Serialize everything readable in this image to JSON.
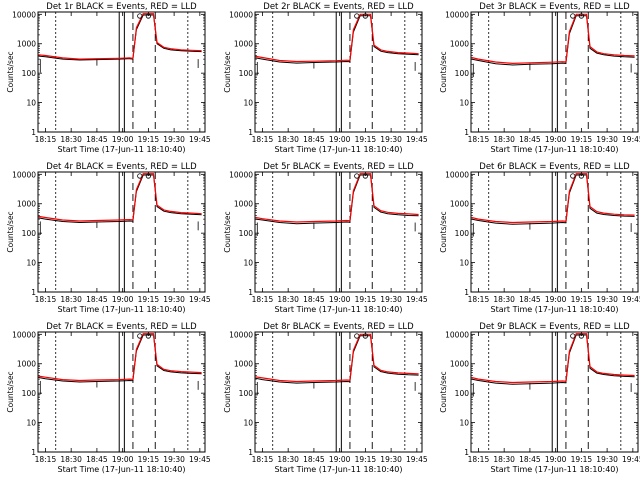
{
  "panel_layout": "3x3 grid",
  "colors": {
    "events": "#000000",
    "lld": "#ff0000",
    "background": "#ffffff"
  },
  "common": {
    "ylabel": "Counts/sec",
    "xlabel": "Start Time (17-Jun-11 18:10:40)",
    "xticks": [
      "18:15",
      "18:30",
      "18:45",
      "19:00",
      "19:15",
      "19:30",
      "19:45"
    ],
    "yticks": [
      "1",
      "10",
      "100",
      "1000",
      "10000"
    ]
  },
  "chart_data": [
    {
      "type": "line",
      "title": "Det 1r  BLACK = Events, RED = LLD",
      "xlabel": "Start Time (17-Jun-11 18:10:40)",
      "ylabel": "Counts/sec",
      "yscale": "log",
      "ylim": [
        1,
        12000
      ],
      "xlim": [
        "18:10:40",
        "19:48:00"
      ],
      "series": [
        {
          "name": "Events",
          "color": "#000000",
          "x": [
            "18:11",
            "18:15",
            "18:25",
            "18:35",
            "18:45",
            "18:58",
            "19:04",
            "19:06",
            "19:08",
            "19:12",
            "19:18",
            "19:20",
            "19:24",
            "19:28",
            "19:34",
            "19:40",
            "19:46"
          ],
          "y": [
            380,
            360,
            300,
            280,
            290,
            300,
            310,
            300,
            3000,
            9500,
            9500,
            1000,
            700,
            620,
            580,
            560,
            540
          ]
        },
        {
          "name": "LLD",
          "color": "#ff0000",
          "x": [
            "18:11",
            "18:15",
            "18:25",
            "18:35",
            "18:45",
            "18:58",
            "19:04",
            "19:06",
            "19:08",
            "19:12",
            "19:18",
            "19:20",
            "19:24",
            "19:28",
            "19:34",
            "19:40",
            "19:46"
          ],
          "y": [
            420,
            400,
            330,
            300,
            310,
            320,
            330,
            320,
            3500,
            10500,
            10500,
            1100,
            760,
            680,
            620,
            600,
            580
          ]
        }
      ]
    },
    {
      "type": "line",
      "title": "Det 2r  BLACK = Events, RED = LLD",
      "xlabel": "Start Time (17-Jun-11 18:10:40)",
      "ylabel": "Counts/sec",
      "yscale": "log",
      "ylim": [
        1,
        12000
      ],
      "xlim": [
        "18:10:40",
        "19:48:00"
      ],
      "series": [
        {
          "name": "Events",
          "color": "#000000",
          "x": [
            "18:11",
            "18:15",
            "18:25",
            "18:35",
            "18:45",
            "18:58",
            "19:04",
            "19:06",
            "19:08",
            "19:12",
            "19:18",
            "19:20",
            "19:24",
            "19:28",
            "19:34",
            "19:40",
            "19:46"
          ],
          "y": [
            330,
            300,
            240,
            220,
            230,
            240,
            250,
            245,
            2500,
            9000,
            9000,
            800,
            560,
            500,
            460,
            440,
            420
          ]
        },
        {
          "name": "LLD",
          "color": "#ff0000",
          "x": [
            "18:11",
            "18:15",
            "18:25",
            "18:35",
            "18:45",
            "18:58",
            "19:04",
            "19:06",
            "19:08",
            "19:12",
            "19:18",
            "19:20",
            "19:24",
            "19:28",
            "19:34",
            "19:40",
            "19:46"
          ],
          "y": [
            370,
            340,
            270,
            250,
            255,
            265,
            275,
            270,
            3000,
            10000,
            10000,
            900,
            620,
            550,
            500,
            480,
            460
          ]
        }
      ]
    },
    {
      "type": "line",
      "title": "Det 3r  BLACK = Events, RED = LLD",
      "xlabel": "Start Time (17-Jun-11 18:10:40)",
      "ylabel": "Counts/sec",
      "yscale": "log",
      "ylim": [
        1,
        12000
      ],
      "xlim": [
        "18:10:40",
        "19:48:00"
      ],
      "series": [
        {
          "name": "Events",
          "color": "#000000",
          "x": [
            "18:11",
            "18:15",
            "18:25",
            "18:35",
            "18:45",
            "18:58",
            "19:04",
            "19:06",
            "19:08",
            "19:12",
            "19:18",
            "19:20",
            "19:24",
            "19:28",
            "19:34",
            "19:40",
            "19:46"
          ],
          "y": [
            300,
            270,
            210,
            190,
            200,
            210,
            220,
            215,
            2200,
            9000,
            9000,
            700,
            480,
            420,
            380,
            360,
            350
          ]
        },
        {
          "name": "LLD",
          "color": "#ff0000",
          "x": [
            "18:11",
            "18:15",
            "18:25",
            "18:35",
            "18:45",
            "18:58",
            "19:04",
            "19:06",
            "19:08",
            "19:12",
            "19:18",
            "19:20",
            "19:24",
            "19:28",
            "19:34",
            "19:40",
            "19:46"
          ],
          "y": [
            340,
            300,
            240,
            215,
            225,
            235,
            245,
            240,
            2600,
            10000,
            10000,
            800,
            530,
            460,
            420,
            400,
            385
          ]
        }
      ]
    },
    {
      "type": "line",
      "title": "Det 4r  BLACK = Events, RED = LLD",
      "xlabel": "Start Time (17-Jun-11 18:10:40)",
      "ylabel": "Counts/sec",
      "yscale": "log",
      "ylim": [
        1,
        12000
      ],
      "xlim": [
        "18:10:40",
        "19:48:00"
      ],
      "series": [
        {
          "name": "Events",
          "color": "#000000",
          "x": [
            "18:11",
            "18:15",
            "18:25",
            "18:35",
            "18:45",
            "18:58",
            "19:04",
            "19:06",
            "19:08",
            "19:12",
            "19:18",
            "19:20",
            "19:24",
            "19:28",
            "19:34",
            "19:40",
            "19:46"
          ],
          "y": [
            330,
            300,
            250,
            230,
            240,
            250,
            260,
            255,
            2600,
            9500,
            9500,
            800,
            560,
            500,
            460,
            440,
            420
          ]
        },
        {
          "name": "LLD",
          "color": "#ff0000",
          "x": [
            "18:11",
            "18:15",
            "18:25",
            "18:35",
            "18:45",
            "18:58",
            "19:04",
            "19:06",
            "19:08",
            "19:12",
            "19:18",
            "19:20",
            "19:24",
            "19:28",
            "19:34",
            "19:40",
            "19:46"
          ],
          "y": [
            370,
            340,
            280,
            260,
            270,
            280,
            290,
            285,
            3000,
            10500,
            10500,
            900,
            620,
            550,
            500,
            480,
            460
          ]
        }
      ]
    },
    {
      "type": "line",
      "title": "Det 5r  BLACK = Events, RED = LLD",
      "xlabel": "Start Time (17-Jun-11 18:10:40)",
      "ylabel": "Counts/sec",
      "yscale": "log",
      "ylim": [
        1,
        12000
      ],
      "xlim": [
        "18:10:40",
        "19:48:00"
      ],
      "series": [
        {
          "name": "Events",
          "color": "#000000",
          "x": [
            "18:11",
            "18:15",
            "18:25",
            "18:35",
            "18:45",
            "18:58",
            "19:04",
            "19:06",
            "19:08",
            "19:12",
            "19:18",
            "19:20",
            "19:24",
            "19:28",
            "19:34",
            "19:40",
            "19:46"
          ],
          "y": [
            300,
            280,
            230,
            210,
            220,
            230,
            240,
            235,
            2400,
            9500,
            9500,
            750,
            520,
            460,
            420,
            400,
            390
          ]
        },
        {
          "name": "LLD",
          "color": "#ff0000",
          "x": [
            "18:11",
            "18:15",
            "18:25",
            "18:35",
            "18:45",
            "18:58",
            "19:04",
            "19:06",
            "19:08",
            "19:12",
            "19:18",
            "19:20",
            "19:24",
            "19:28",
            "19:34",
            "19:40",
            "19:46"
          ],
          "y": [
            340,
            310,
            260,
            240,
            250,
            260,
            270,
            265,
            2800,
            10500,
            10500,
            850,
            580,
            510,
            470,
            450,
            430
          ]
        }
      ]
    },
    {
      "type": "line",
      "title": "Det 6r  BLACK = Events, RED = LLD",
      "xlabel": "Start Time (17-Jun-11 18:10:40)",
      "ylabel": "Counts/sec",
      "yscale": "log",
      "ylim": [
        1,
        12000
      ],
      "xlim": [
        "18:10:40",
        "19:48:00"
      ],
      "series": [
        {
          "name": "Events",
          "color": "#000000",
          "x": [
            "18:11",
            "18:15",
            "18:25",
            "18:35",
            "18:45",
            "18:58",
            "19:04",
            "19:06",
            "19:08",
            "19:12",
            "19:18",
            "19:20",
            "19:24",
            "19:28",
            "19:34",
            "19:40",
            "19:46"
          ],
          "y": [
            300,
            270,
            220,
            200,
            210,
            220,
            230,
            225,
            2300,
            9500,
            9500,
            700,
            480,
            430,
            400,
            380,
            370
          ]
        },
        {
          "name": "LLD",
          "color": "#ff0000",
          "x": [
            "18:11",
            "18:15",
            "18:25",
            "18:35",
            "18:45",
            "18:58",
            "19:04",
            "19:06",
            "19:08",
            "19:12",
            "19:18",
            "19:20",
            "19:24",
            "19:28",
            "19:34",
            "19:40",
            "19:46"
          ],
          "y": [
            340,
            300,
            250,
            230,
            240,
            250,
            260,
            255,
            2700,
            10500,
            10500,
            800,
            540,
            480,
            440,
            420,
            410
          ]
        }
      ]
    },
    {
      "type": "line",
      "title": "Det 7r  BLACK = Events, RED = LLD",
      "xlabel": "Start Time (17-Jun-11 18:10:40)",
      "ylabel": "Counts/sec",
      "yscale": "log",
      "ylim": [
        1,
        12000
      ],
      "xlim": [
        "18:10:40",
        "19:48:00"
      ],
      "series": [
        {
          "name": "Events",
          "color": "#000000",
          "x": [
            "18:11",
            "18:15",
            "18:25",
            "18:35",
            "18:45",
            "18:58",
            "19:04",
            "19:06",
            "19:08",
            "19:12",
            "19:18",
            "19:20",
            "19:24",
            "19:28",
            "19:34",
            "19:40",
            "19:46"
          ],
          "y": [
            340,
            310,
            260,
            240,
            250,
            260,
            270,
            265,
            2700,
            9500,
            9500,
            850,
            590,
            530,
            490,
            470,
            460
          ]
        },
        {
          "name": "LLD",
          "color": "#ff0000",
          "x": [
            "18:11",
            "18:15",
            "18:25",
            "18:35",
            "18:45",
            "18:58",
            "19:04",
            "19:06",
            "19:08",
            "19:12",
            "19:18",
            "19:20",
            "19:24",
            "19:28",
            "19:34",
            "19:40",
            "19:46"
          ],
          "y": [
            380,
            350,
            290,
            270,
            280,
            290,
            300,
            295,
            3100,
            10500,
            10500,
            950,
            650,
            580,
            540,
            520,
            500
          ]
        }
      ]
    },
    {
      "type": "line",
      "title": "Det 8r  BLACK = Events, RED = LLD",
      "xlabel": "Start Time (17-Jun-11 18:10:40)",
      "ylabel": "Counts/sec",
      "yscale": "log",
      "ylim": [
        1,
        12000
      ],
      "xlim": [
        "18:10:40",
        "19:48:00"
      ],
      "series": [
        {
          "name": "Events",
          "color": "#000000",
          "x": [
            "18:11",
            "18:15",
            "18:25",
            "18:35",
            "18:45",
            "18:58",
            "19:04",
            "19:06",
            "19:08",
            "19:12",
            "19:18",
            "19:20",
            "19:24",
            "19:28",
            "19:34",
            "19:40",
            "19:46"
          ],
          "y": [
            320,
            290,
            240,
            220,
            230,
            240,
            250,
            245,
            2500,
            9000,
            9000,
            780,
            540,
            480,
            440,
            420,
            410
          ]
        },
        {
          "name": "LLD",
          "color": "#ff0000",
          "x": [
            "18:11",
            "18:15",
            "18:25",
            "18:35",
            "18:45",
            "18:58",
            "19:04",
            "19:06",
            "19:08",
            "19:12",
            "19:18",
            "19:20",
            "19:24",
            "19:28",
            "19:34",
            "19:40",
            "19:46"
          ],
          "y": [
            360,
            330,
            270,
            250,
            260,
            270,
            280,
            275,
            2900,
            10000,
            10000,
            880,
            600,
            530,
            490,
            470,
            455
          ]
        }
      ]
    },
    {
      "type": "line",
      "title": "Det 9r  BLACK = Events, RED = LLD",
      "xlabel": "Start Time (17-Jun-11 18:10:40)",
      "ylabel": "Counts/sec",
      "yscale": "log",
      "ylim": [
        1,
        12000
      ],
      "xlim": [
        "18:10:40",
        "19:48:00"
      ],
      "series": [
        {
          "name": "Events",
          "color": "#000000",
          "x": [
            "18:11",
            "18:15",
            "18:25",
            "18:35",
            "18:45",
            "18:58",
            "19:04",
            "19:06",
            "19:08",
            "19:12",
            "19:18",
            "19:20",
            "19:24",
            "19:28",
            "19:34",
            "19:40",
            "19:46"
          ],
          "y": [
            300,
            270,
            220,
            200,
            210,
            220,
            230,
            225,
            2300,
            9500,
            9500,
            700,
            480,
            430,
            390,
            370,
            360
          ]
        },
        {
          "name": "LLD",
          "color": "#ff0000",
          "x": [
            "18:11",
            "18:15",
            "18:25",
            "18:35",
            "18:45",
            "18:58",
            "19:04",
            "19:06",
            "19:08",
            "19:12",
            "19:18",
            "19:20",
            "19:24",
            "19:28",
            "19:34",
            "19:40",
            "19:46"
          ],
          "y": [
            340,
            300,
            250,
            230,
            240,
            250,
            260,
            255,
            2700,
            10500,
            10500,
            800,
            530,
            470,
            430,
            410,
            400
          ]
        }
      ]
    }
  ]
}
